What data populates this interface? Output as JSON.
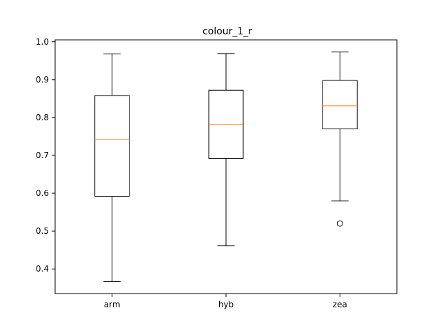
{
  "chart_data": {
    "type": "boxplot",
    "title": "colour_1_r",
    "xlabel": "",
    "ylabel": "",
    "ylim": [
      0.335,
      1.005
    ],
    "yticks": [
      0.4,
      0.5,
      0.6,
      0.7,
      0.8,
      0.9,
      1.0
    ],
    "ytick_labels": [
      "0.4",
      "0.5",
      "0.6",
      "0.7",
      "0.8",
      "0.9",
      "1.0"
    ],
    "categories": [
      "arm",
      "hyb",
      "zea"
    ],
    "boxes": [
      {
        "label": "arm",
        "whisker_low": 0.367,
        "q1": 0.592,
        "median": 0.742,
        "q3": 0.858,
        "whisker_high": 0.968,
        "outliers": []
      },
      {
        "label": "hyb",
        "whisker_low": 0.461,
        "q1": 0.692,
        "median": 0.781,
        "q3": 0.872,
        "whisker_high": 0.969,
        "outliers": []
      },
      {
        "label": "zea",
        "whisker_low": 0.58,
        "q1": 0.77,
        "median": 0.831,
        "q3": 0.898,
        "whisker_high": 0.973,
        "outliers": [
          0.52
        ]
      }
    ],
    "colors": {
      "box": "#000000",
      "median": "#ff7f0e",
      "outlier": "#000000"
    },
    "grid": false
  }
}
